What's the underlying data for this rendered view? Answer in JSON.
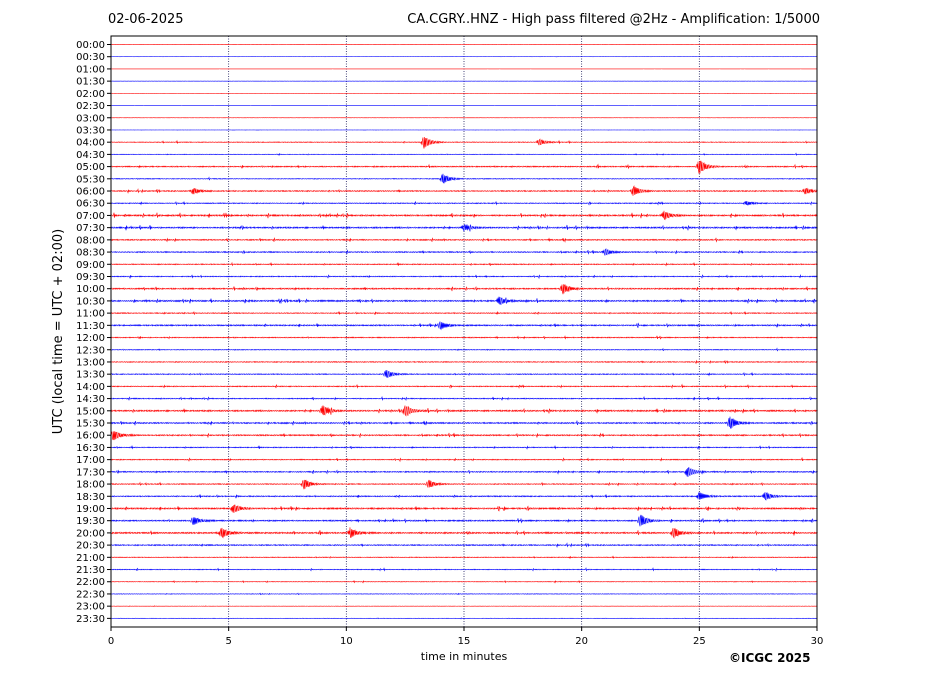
{
  "header": {
    "date": "02-06-2025",
    "title": "CA.CGRY..HNZ - High pass filtered @2Hz - Amplification: 1/5000"
  },
  "footer": {
    "copyright": "©ICGC 2025"
  },
  "chart_data": {
    "type": "line",
    "title": "CA.CGRY..HNZ - High pass filtered @2Hz - Amplification: 1/5000",
    "xlabel": "time in minutes",
    "ylabel": "UTC (local time = UTC + 02:00)",
    "xlim": [
      0,
      30
    ],
    "x_ticks": [
      0,
      5,
      10,
      15,
      20,
      25,
      30
    ],
    "x_gridlines": [
      5,
      10,
      15,
      20,
      25
    ],
    "rows": [
      "00:00",
      "00:30",
      "01:00",
      "01:30",
      "02:00",
      "02:30",
      "03:00",
      "03:30",
      "04:00",
      "04:30",
      "05:00",
      "05:30",
      "06:00",
      "06:30",
      "07:00",
      "07:30",
      "08:00",
      "08:30",
      "09:00",
      "09:30",
      "10:00",
      "10:30",
      "11:00",
      "11:30",
      "12:00",
      "12:30",
      "13:00",
      "13:30",
      "14:00",
      "14:30",
      "15:00",
      "15:30",
      "16:00",
      "16:30",
      "17:00",
      "17:30",
      "18:00",
      "18:30",
      "19:00",
      "19:30",
      "20:00",
      "20:30",
      "21:00",
      "21:30",
      "22:00",
      "22:30",
      "23:00",
      "23:30"
    ],
    "series_colors": {
      "hour_rows": "#ff0000",
      "half_hour_rows": "#0000ff"
    },
    "noise_level": [
      0.05,
      0.05,
      0.05,
      0.05,
      0.05,
      0.05,
      0.05,
      0.05,
      0.4,
      0.3,
      0.6,
      0.4,
      0.6,
      0.5,
      0.8,
      0.8,
      0.6,
      0.6,
      0.5,
      0.5,
      0.7,
      0.8,
      0.5,
      0.7,
      0.5,
      0.4,
      0.5,
      0.5,
      0.5,
      0.5,
      0.8,
      0.7,
      0.7,
      0.5,
      0.5,
      0.6,
      0.5,
      0.6,
      0.8,
      0.7,
      0.8,
      0.6,
      0.4,
      0.4,
      0.3,
      0.3,
      0.15,
      0.2
    ],
    "events": [
      {
        "row": "04:00",
        "minute": 13.3,
        "amplitude": 6
      },
      {
        "row": "04:00",
        "minute": 18.2,
        "amplitude": 3
      },
      {
        "row": "05:00",
        "minute": 25.0,
        "amplitude": 7
      },
      {
        "row": "05:30",
        "minute": 14.1,
        "amplitude": 5
      },
      {
        "row": "06:00",
        "minute": 3.5,
        "amplitude": 3
      },
      {
        "row": "06:00",
        "minute": 22.2,
        "amplitude": 5
      },
      {
        "row": "06:00",
        "minute": 29.5,
        "amplitude": 3
      },
      {
        "row": "06:30",
        "minute": 27.0,
        "amplitude": 2
      },
      {
        "row": "07:00",
        "minute": 23.5,
        "amplitude": 4
      },
      {
        "row": "07:30",
        "minute": 15.0,
        "amplitude": 3
      },
      {
        "row": "08:30",
        "minute": 21.0,
        "amplitude": 3
      },
      {
        "row": "10:00",
        "minute": 19.2,
        "amplitude": 5
      },
      {
        "row": "10:30",
        "minute": 16.5,
        "amplitude": 4
      },
      {
        "row": "11:30",
        "minute": 14.0,
        "amplitude": 4
      },
      {
        "row": "13:30",
        "minute": 11.7,
        "amplitude": 4
      },
      {
        "row": "15:00",
        "minute": 12.5,
        "amplitude": 5
      },
      {
        "row": "15:00",
        "minute": 9.0,
        "amplitude": 5
      },
      {
        "row": "15:30",
        "minute": 26.3,
        "amplitude": 6
      },
      {
        "row": "16:00",
        "minute": 0.1,
        "amplitude": 5
      },
      {
        "row": "17:30",
        "minute": 24.5,
        "amplitude": 5
      },
      {
        "row": "18:00",
        "minute": 8.2,
        "amplitude": 5
      },
      {
        "row": "18:00",
        "minute": 13.5,
        "amplitude": 4
      },
      {
        "row": "18:30",
        "minute": 25.0,
        "amplitude": 4
      },
      {
        "row": "18:30",
        "minute": 27.8,
        "amplitude": 4
      },
      {
        "row": "19:00",
        "minute": 5.2,
        "amplitude": 4
      },
      {
        "row": "19:30",
        "minute": 3.5,
        "amplitude": 4
      },
      {
        "row": "19:30",
        "minute": 22.5,
        "amplitude": 6
      },
      {
        "row": "20:00",
        "minute": 4.7,
        "amplitude": 5
      },
      {
        "row": "20:00",
        "minute": 10.2,
        "amplitude": 4
      },
      {
        "row": "20:00",
        "minute": 23.9,
        "amplitude": 5
      }
    ]
  }
}
